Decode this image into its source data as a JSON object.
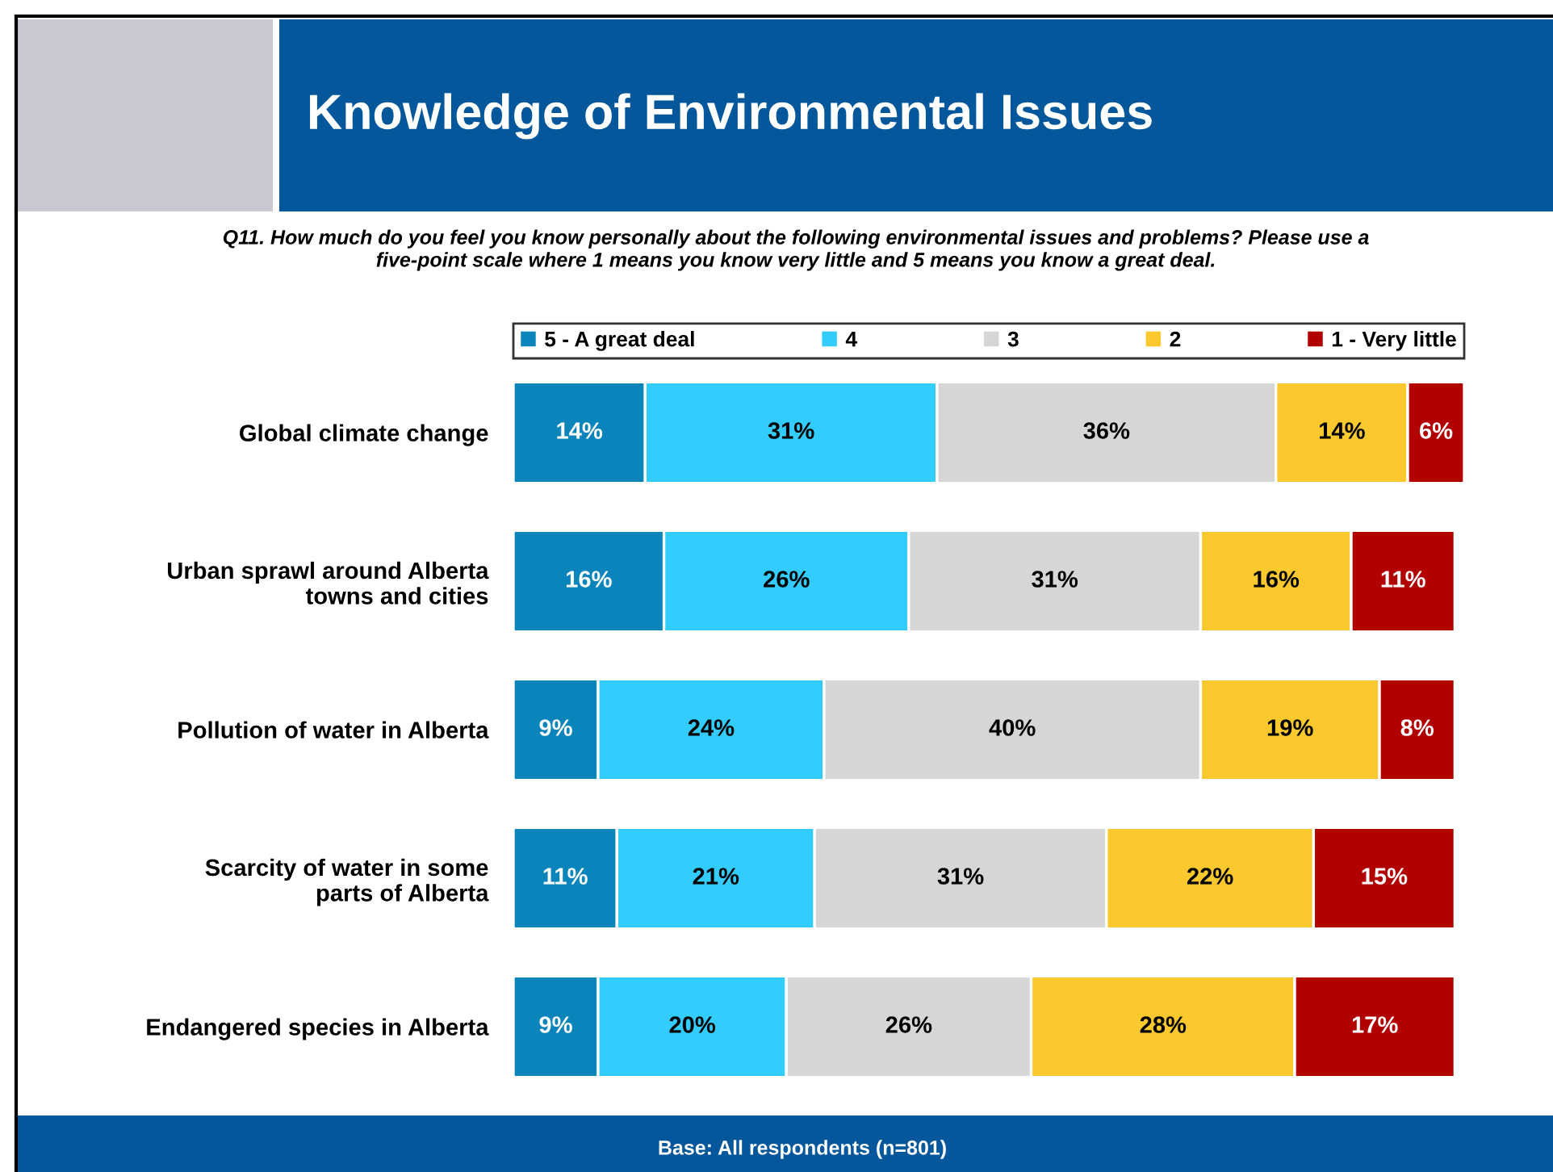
{
  "chart_data": {
    "type": "bar",
    "orientation": "horizontal",
    "stacked": true,
    "title": "Knowledge of Environmental Issues",
    "subtitle": "Q11. How much do you feel you know personally about the following environmental issues and problems? Please use a\nfive-point scale where 1 means you know very little and 5 means you know a great deal.",
    "categories": [
      "Global climate change",
      "Urban sprawl around Alberta\ntowns and cities",
      "Pollution of water in Alberta",
      "Scarcity of water in some\nparts of Alberta",
      "Endangered species in Alberta"
    ],
    "series": [
      {
        "name": "5 - A great deal",
        "color": "#0a85bb",
        "values": [
          14,
          16,
          9,
          11,
          9
        ],
        "value_labels": [
          "14%",
          "16%",
          "9%",
          "11%",
          "9%"
        ]
      },
      {
        "name": "4",
        "color": "#33ccff",
        "values": [
          31,
          26,
          24,
          21,
          20
        ],
        "value_labels": [
          "31%",
          "26%",
          "24%",
          "21%",
          "20%"
        ]
      },
      {
        "name": "3",
        "color": "#d6d6d6",
        "values": [
          36,
          31,
          40,
          31,
          26
        ],
        "value_labels": [
          "36%",
          "31%",
          "40%",
          "31%",
          "26%"
        ]
      },
      {
        "name": "2",
        "color": "#fbc82e",
        "values": [
          14,
          16,
          19,
          22,
          28
        ],
        "value_labels": [
          "14%",
          "16%",
          "19%",
          "22%",
          "28%"
        ]
      },
      {
        "name": "1 - Very little",
        "color": "#b20000",
        "values": [
          6,
          11,
          8,
          15,
          17
        ],
        "value_labels": [
          "6%",
          "11%",
          "8%",
          "15%",
          "17%"
        ]
      }
    ],
    "legend": "top",
    "tick_labels": "y",
    "annotations": [
      "Base: All respondents (n=801)"
    ]
  }
}
